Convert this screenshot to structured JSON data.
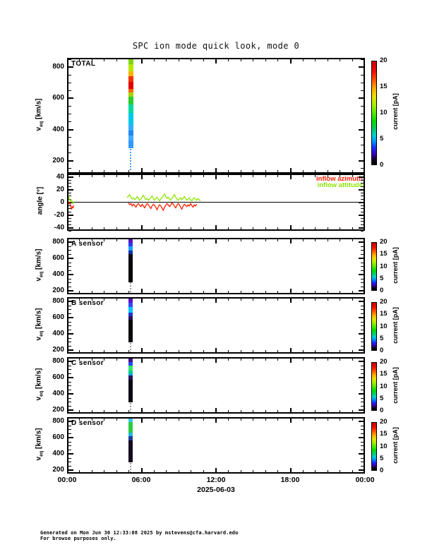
{
  "title": "SPC ion mode quick look, mode 0",
  "x_axis": {
    "tick_labels": [
      "00:00",
      "06:00",
      "12:00",
      "18:00",
      "00:00"
    ],
    "tick_hours": [
      0,
      6,
      12,
      18,
      24
    ],
    "minor_step_hours": 1,
    "date_label": "2025-06-03"
  },
  "labels": {
    "v": "v",
    "eq": "eq",
    "kms": " [km/s]",
    "angle": "angle [°]"
  },
  "colorbar": {
    "label": "current [pA]",
    "ticks": [
      0,
      5,
      10,
      15,
      20
    ],
    "min_pA": 0,
    "max_pA": 20,
    "gradient_stops": [
      [
        0.0,
        "#000000"
      ],
      [
        0.05,
        "#15002a"
      ],
      [
        0.1,
        "#3c00b4"
      ],
      [
        0.16,
        "#1a2bff"
      ],
      [
        0.22,
        "#0090ff"
      ],
      [
        0.28,
        "#00d2d2"
      ],
      [
        0.34,
        "#00cc70"
      ],
      [
        0.42,
        "#00dd00"
      ],
      [
        0.5,
        "#55e800"
      ],
      [
        0.58,
        "#aaee00"
      ],
      [
        0.66,
        "#e8e000"
      ],
      [
        0.74,
        "#ffaa00"
      ],
      [
        0.82,
        "#ff5500"
      ],
      [
        0.9,
        "#f01000"
      ],
      [
        1.0,
        "#c80000"
      ]
    ]
  },
  "footer": {
    "line1": "Generated on Mon Jun 30 12:33:08 2025 by mstevens@cfa.harvard.edu",
    "line2": "For browse purposes only."
  },
  "chart_data": [
    {
      "type": "heatmap",
      "id": "total",
      "panel_label": "TOTAL",
      "ylabel": "v_eq [km/s]",
      "ylim": [
        118,
        859
      ],
      "yticks": [
        200,
        400,
        600,
        800
      ],
      "y_minor_step": 50,
      "x_range_hours": [
        0,
        24
      ],
      "event_window_hours": [
        4.95,
        5.33
      ],
      "stripe_segments": [
        {
          "v": [
            818,
            859
          ],
          "color": "#7fd411",
          "pA": 10.5
        },
        {
          "v": [
            775,
            818
          ],
          "color": "#b8e800",
          "pA": 11.5
        },
        {
          "v": [
            742,
            775
          ],
          "color": "#ffb300",
          "pA": 14
        },
        {
          "v": [
            705,
            742
          ],
          "color": "#f23300",
          "pA": 17.5
        },
        {
          "v": [
            660,
            705
          ],
          "color": "#e00000",
          "pA": 19.5
        },
        {
          "v": [
            638,
            660
          ],
          "color": "#ff6600",
          "pA": 15.5
        },
        {
          "v": [
            612,
            638
          ],
          "color": "#a8d400",
          "pA": 11
        },
        {
          "v": [
            560,
            612
          ],
          "color": "#2ecc2e",
          "pA": 8
        },
        {
          "v": [
            505,
            560
          ],
          "color": "#00d9a0",
          "pA": 6.5
        },
        {
          "v": [
            430,
            505
          ],
          "color": "#00c8e8",
          "pA": 5.5
        },
        {
          "v": [
            395,
            430
          ],
          "color": "#35aaff",
          "pA": 4.5
        },
        {
          "v": [
            360,
            395
          ],
          "color": "#2288ee",
          "pA": 4
        },
        {
          "v": [
            330,
            360
          ],
          "color": "#44aaff",
          "pA": 4.5
        },
        {
          "v": [
            280,
            330
          ],
          "color": "#3399ff",
          "pA": 4.2
        }
      ],
      "dropout_dots": {
        "v": [
          135,
          278
        ],
        "color": "#4499ff"
      }
    },
    {
      "type": "line",
      "id": "angle",
      "ylabel": "angle [°]",
      "ylim": [
        -45,
        45
      ],
      "yticks": [
        -40,
        -20,
        0,
        20,
        40
      ],
      "y_minor_step": 5,
      "zero_line": true,
      "series": [
        {
          "name": "inflow azimuth",
          "color": "#ff1e00",
          "segments": [
            [
              [
                0.0,
                1
              ],
              [
                0.06,
                -2
              ],
              [
                0.12,
                0
              ],
              [
                0.18,
                -3
              ],
              [
                0.24,
                -1
              ],
              [
                0.3,
                -6
              ],
              [
                0.36,
                -11
              ],
              [
                0.42,
                -7
              ],
              [
                0.48,
                -9
              ],
              [
                0.54,
                -5
              ]
            ],
            [
              [
                4.95,
                -1
              ],
              [
                5.05,
                -4
              ],
              [
                5.15,
                -2
              ],
              [
                5.25,
                -6
              ],
              [
                5.35,
                -3
              ],
              [
                5.45,
                -5
              ],
              [
                5.55,
                -8
              ],
              [
                5.65,
                -4
              ],
              [
                5.75,
                -2
              ],
              [
                5.85,
                -5
              ],
              [
                5.95,
                -7
              ],
              [
                6.05,
                -3
              ],
              [
                6.15,
                -6
              ],
              [
                6.25,
                -9
              ],
              [
                6.35,
                -5
              ],
              [
                6.45,
                -2
              ],
              [
                6.55,
                -4
              ],
              [
                6.65,
                -7
              ],
              [
                6.75,
                -10
              ],
              [
                6.85,
                -6
              ],
              [
                6.95,
                -3
              ],
              [
                7.05,
                -5
              ],
              [
                7.15,
                -8
              ],
              [
                7.25,
                -12
              ],
              [
                7.35,
                -7
              ],
              [
                7.45,
                -4
              ],
              [
                7.55,
                -6
              ],
              [
                7.65,
                -9
              ],
              [
                7.75,
                -13
              ],
              [
                7.85,
                -8
              ],
              [
                7.95,
                -5
              ],
              [
                8.05,
                -2
              ],
              [
                8.15,
                -4
              ],
              [
                8.25,
                -7
              ],
              [
                8.35,
                -5
              ],
              [
                8.45,
                -1
              ],
              [
                8.55,
                -3
              ],
              [
                8.65,
                -6
              ],
              [
                8.75,
                -9
              ],
              [
                8.85,
                -5
              ],
              [
                8.95,
                -2
              ],
              [
                9.05,
                -4
              ],
              [
                9.15,
                -8
              ],
              [
                9.25,
                -11
              ],
              [
                9.35,
                -6
              ],
              [
                9.45,
                -3
              ],
              [
                9.55,
                -5
              ],
              [
                9.65,
                -7
              ],
              [
                9.75,
                -4
              ],
              [
                9.85,
                -6
              ],
              [
                9.95,
                -2
              ],
              [
                10.05,
                -5
              ],
              [
                10.15,
                -8
              ],
              [
                10.25,
                -4
              ],
              [
                10.35,
                -6
              ],
              [
                10.45,
                -3
              ]
            ]
          ]
        },
        {
          "name": "inflow attitude",
          "color": "#8ce600",
          "segments": [
            [
              [
                0.0,
                3
              ],
              [
                0.06,
                8
              ],
              [
                0.12,
                10
              ],
              [
                0.18,
                5
              ],
              [
                0.24,
                2
              ],
              [
                0.3,
                4
              ],
              [
                0.36,
                0
              ],
              [
                0.42,
                2
              ],
              [
                0.48,
                -2
              ],
              [
                0.54,
                0
              ]
            ],
            [
              [
                4.85,
                7
              ],
              [
                4.95,
                10
              ],
              [
                5.05,
                12
              ],
              [
                5.15,
                8
              ],
              [
                5.25,
                5
              ],
              [
                5.35,
                7
              ],
              [
                5.45,
                4
              ],
              [
                5.55,
                6
              ],
              [
                5.65,
                9
              ],
              [
                5.75,
                6
              ],
              [
                5.85,
                3
              ],
              [
                5.95,
                5
              ],
              [
                6.05,
                8
              ],
              [
                6.15,
                11
              ],
              [
                6.25,
                7
              ],
              [
                6.35,
                4
              ],
              [
                6.45,
                6
              ],
              [
                6.55,
                3
              ],
              [
                6.65,
                5
              ],
              [
                6.75,
                7
              ],
              [
                6.85,
                10
              ],
              [
                6.95,
                6
              ],
              [
                7.05,
                3
              ],
              [
                7.15,
                6
              ],
              [
                7.25,
                8
              ],
              [
                7.35,
                5
              ],
              [
                7.45,
                2
              ],
              [
                7.55,
                5
              ],
              [
                7.65,
                7
              ],
              [
                7.75,
                10
              ],
              [
                7.85,
                13
              ],
              [
                7.95,
                9
              ],
              [
                8.05,
                6
              ],
              [
                8.15,
                8
              ],
              [
                8.25,
                5
              ],
              [
                8.35,
                3
              ],
              [
                8.45,
                6
              ],
              [
                8.55,
                9
              ],
              [
                8.65,
                12
              ],
              [
                8.75,
                8
              ],
              [
                8.85,
                5
              ],
              [
                8.95,
                3
              ],
              [
                9.05,
                5
              ],
              [
                9.15,
                7
              ],
              [
                9.25,
                4
              ],
              [
                9.35,
                6
              ],
              [
                9.45,
                9
              ],
              [
                9.55,
                6
              ],
              [
                9.65,
                3
              ],
              [
                9.75,
                5
              ],
              [
                9.85,
                7
              ],
              [
                9.95,
                4
              ],
              [
                10.05,
                2
              ],
              [
                10.15,
                5
              ],
              [
                10.25,
                7
              ],
              [
                10.35,
                5
              ],
              [
                10.45,
                3
              ],
              [
                10.55,
                6
              ],
              [
                10.65,
                4
              ],
              [
                10.75,
                2
              ]
            ]
          ]
        }
      ]
    },
    {
      "type": "heatmap",
      "id": "a",
      "panel_label": "A sensor",
      "ylabel": "v_eq [km/s]",
      "ylim": [
        160,
        855
      ],
      "yticks": [
        200,
        400,
        600,
        800
      ],
      "y_minor_step": 50,
      "x_range_hours": [
        0,
        24
      ],
      "event_window_hours": [
        4.95,
        5.3
      ],
      "stripe_segments": [
        {
          "v": [
            798,
            855
          ],
          "color": "#5518c0",
          "pA": 2
        },
        {
          "v": [
            752,
            798
          ],
          "color": "#2b3cf0",
          "pA": 3.2
        },
        {
          "v": [
            695,
            752
          ],
          "color": "#18a0ff",
          "pA": 4.8
        },
        {
          "v": [
            652,
            695
          ],
          "color": "#1530a8",
          "pA": 2.8
        },
        {
          "v": [
            580,
            652
          ],
          "color": "#0a0a12",
          "pA": 0.4
        },
        {
          "v": [
            310,
            580
          ],
          "color": "#050508",
          "pA": 0.2
        }
      ],
      "dropout_dots": {
        "v": [
          170,
          305
        ],
        "color": "#9a9a9a"
      }
    },
    {
      "type": "heatmap",
      "id": "b",
      "panel_label": "B sensor",
      "ylabel": "v_eq [km/s]",
      "ylim": [
        160,
        855
      ],
      "yticks": [
        200,
        400,
        600,
        800
      ],
      "y_minor_step": 50,
      "x_range_hours": [
        0,
        24
      ],
      "event_window_hours": [
        4.95,
        5.3
      ],
      "stripe_segments": [
        {
          "v": [
            785,
            855
          ],
          "color": "#5a14c0",
          "pA": 2
        },
        {
          "v": [
            732,
            785
          ],
          "color": "#3348ff",
          "pA": 3.4
        },
        {
          "v": [
            662,
            732
          ],
          "color": "#00c4ff",
          "pA": 5.2
        },
        {
          "v": [
            622,
            662
          ],
          "color": "#2233cc",
          "pA": 3
        },
        {
          "v": [
            580,
            622
          ],
          "color": "#2a1060",
          "pA": 1.4
        },
        {
          "v": [
            300,
            580
          ],
          "color": "#07050c",
          "pA": 0.3
        }
      ],
      "dropout_dots": {
        "v": [
          170,
          295
        ],
        "color": "#9a9a9a"
      }
    },
    {
      "type": "heatmap",
      "id": "c",
      "panel_label": "C sensor",
      "ylabel": "v_eq [km/s]",
      "ylim": [
        160,
        855
      ],
      "yticks": [
        200,
        400,
        600,
        800
      ],
      "y_minor_step": 50,
      "x_range_hours": [
        0,
        24
      ],
      "event_window_hours": [
        4.95,
        5.3
      ],
      "stripe_segments": [
        {
          "v": [
            792,
            855
          ],
          "color": "#46108c",
          "pA": 1.7
        },
        {
          "v": [
            747,
            792
          ],
          "color": "#2547ee",
          "pA": 3.3
        },
        {
          "v": [
            688,
            747
          ],
          "color": "#33e866",
          "pA": 7.5
        },
        {
          "v": [
            656,
            688
          ],
          "color": "#00cc88",
          "pA": 6.8
        },
        {
          "v": [
            626,
            656
          ],
          "color": "#00a8dd",
          "pA": 5
        },
        {
          "v": [
            576,
            626
          ],
          "color": "#2a0f5e",
          "pA": 1.4
        },
        {
          "v": [
            300,
            576
          ],
          "color": "#0a0614",
          "pA": 0.3
        }
      ],
      "dropout_dots": {
        "v": [
          170,
          295
        ],
        "color": "#9a9a9a"
      }
    },
    {
      "type": "heatmap",
      "id": "d",
      "panel_label": "D sensor",
      "ylabel": "v_eq [km/s]",
      "ylim": [
        160,
        855
      ],
      "yticks": [
        200,
        400,
        600,
        800
      ],
      "y_minor_step": 50,
      "x_range_hours": [
        0,
        24
      ],
      "event_window_hours": [
        4.95,
        5.3
      ],
      "stripe_segments": [
        {
          "v": [
            792,
            855
          ],
          "color": "#3cc8ee",
          "pA": 5.5
        },
        {
          "v": [
            668,
            792
          ],
          "color": "#2ecc44",
          "pA": 8
        },
        {
          "v": [
            624,
            668
          ],
          "color": "#22b8dd",
          "pA": 5.2
        },
        {
          "v": [
            566,
            624
          ],
          "color": "#223a99",
          "pA": 2.6
        },
        {
          "v": [
            300,
            566
          ],
          "color": "#140a20",
          "pA": 0.6
        }
      ],
      "dropout_dots": {
        "v": [
          170,
          295
        ],
        "color": "#9a9a9a"
      }
    }
  ]
}
